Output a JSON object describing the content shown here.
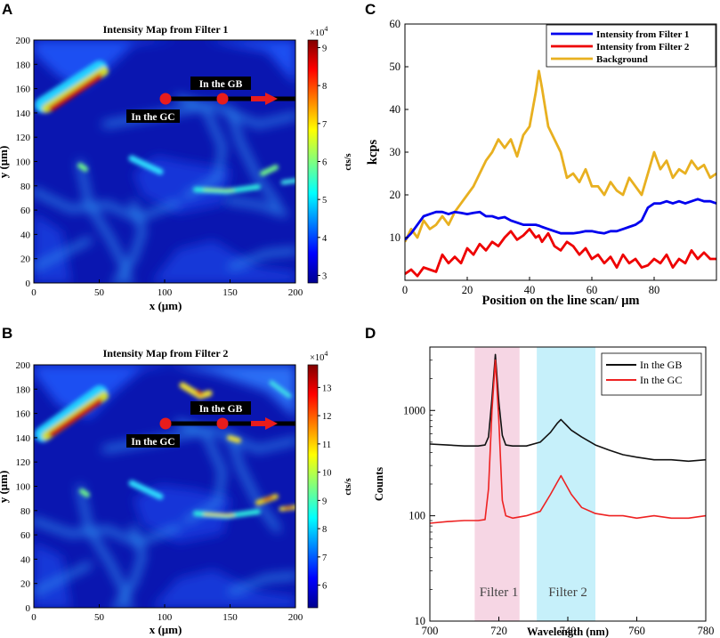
{
  "panels": {
    "A": {
      "letter": "A",
      "title": "Intensity Map from Filter 1",
      "xlabel": "x (μm)",
      "ylabel": "y (μm)",
      "xticks": [
        "0",
        "50",
        "100",
        "150",
        "200"
      ],
      "yticks": [
        "0",
        "20",
        "40",
        "60",
        "80",
        "100",
        "120",
        "140",
        "160",
        "180",
        "200"
      ],
      "xlim": [
        0,
        200
      ],
      "ylim": [
        0,
        200
      ],
      "colorbar": {
        "unit": "cts/s",
        "multiplier": "×10",
        "exponent": "4",
        "ticks": [
          "3",
          "4",
          "5",
          "6",
          "7",
          "8",
          "9"
        ],
        "range": [
          2.8,
          9.2
        ]
      },
      "annotations": {
        "gb": "In the GB",
        "gc": "In the GC",
        "line_scan": {
          "x": [
            100,
            200
          ],
          "y": 150,
          "gc_point_x": 101,
          "gb_point_x": 144
        }
      }
    },
    "B": {
      "letter": "B",
      "title": "Intensity Map from Filter 2",
      "xlabel": "x (μm)",
      "ylabel": "y (μm)",
      "xticks": [
        "0",
        "50",
        "100",
        "150",
        "200"
      ],
      "yticks": [
        "0",
        "20",
        "40",
        "60",
        "80",
        "100",
        "120",
        "140",
        "160",
        "180",
        "200"
      ],
      "xlim": [
        0,
        200
      ],
      "ylim": [
        0,
        200
      ],
      "colorbar": {
        "unit": "cts/s",
        "multiplier": "×10",
        "exponent": "4",
        "ticks": [
          "6",
          "7",
          "8",
          "9",
          "10",
          "11",
          "12",
          "13"
        ],
        "range": [
          5.2,
          13.8
        ]
      },
      "annotations": {
        "gb": "In the GB",
        "gc": "In the GC",
        "line_scan": {
          "x": [
            100,
            200
          ],
          "y": 150,
          "gc_point_x": 101,
          "gb_point_x": 144
        }
      }
    },
    "C": {
      "letter": "C"
    },
    "D": {
      "letter": "D"
    }
  },
  "chart_data": [
    {
      "panel": "C",
      "type": "line",
      "title": "",
      "xlabel": "Position on the line scan/ μm",
      "ylabel": "kcps",
      "xlim": [
        0,
        100
      ],
      "ylim": [
        0,
        60
      ],
      "xticks": [
        "0",
        "20",
        "40",
        "60",
        "80"
      ],
      "yticks": [
        "10",
        "20",
        "30",
        "40",
        "50",
        "60"
      ],
      "legend_position": "top-right",
      "x": [
        0,
        2,
        4,
        6,
        8,
        10,
        12,
        14,
        16,
        18,
        20,
        22,
        24,
        26,
        28,
        30,
        32,
        34,
        36,
        38,
        40,
        42,
        43,
        44,
        46,
        48,
        50,
        52,
        54,
        56,
        58,
        60,
        62,
        64,
        66,
        68,
        70,
        72,
        74,
        76,
        78,
        80,
        82,
        84,
        86,
        88,
        90,
        92,
        94,
        96,
        98,
        100
      ],
      "series": [
        {
          "name": "Intensity from Filter 1",
          "color": "#0000ee",
          "values": [
            9.5,
            11,
            13,
            15,
            15.5,
            16,
            16,
            15.5,
            16,
            15.8,
            15.5,
            15.8,
            16,
            15,
            15,
            14.5,
            14.8,
            14,
            13.5,
            13,
            13,
            13,
            12.8,
            12.5,
            12,
            11.5,
            11,
            11,
            11,
            11.2,
            11.5,
            11.5,
            11.2,
            11,
            11.5,
            11.5,
            12,
            12.5,
            13,
            14,
            17,
            18,
            18,
            18.5,
            18,
            18.5,
            18,
            18.5,
            19,
            18.5,
            18.5,
            18
          ]
        },
        {
          "name": "Intensity from Filter 2",
          "color": "#ee0000",
          "values": [
            1.5,
            2.5,
            1,
            3,
            2.5,
            2,
            6,
            4,
            5.5,
            4,
            7.5,
            6,
            8.5,
            7,
            9,
            8,
            10,
            11.5,
            9.5,
            10.5,
            12,
            10,
            10.5,
            9,
            11,
            8,
            7,
            9,
            8,
            6,
            7.5,
            5,
            6,
            4,
            5.5,
            3,
            6,
            4,
            5,
            3,
            3.5,
            5,
            4,
            6,
            3,
            5,
            4,
            7,
            5,
            6.5,
            5,
            5
          ]
        },
        {
          "name": "Background",
          "color": "#e8b020",
          "values": [
            9,
            12,
            10,
            14,
            12,
            13,
            15,
            13,
            16,
            18,
            20,
            22,
            25,
            28,
            30,
            33,
            31,
            33,
            29,
            34,
            36,
            44,
            49,
            45,
            36,
            33,
            30,
            24,
            25,
            23,
            26,
            22,
            22,
            20,
            23,
            21,
            20,
            24,
            22,
            20,
            25,
            30,
            26,
            28,
            24,
            26,
            25,
            28,
            26,
            27,
            24,
            25
          ]
        }
      ]
    },
    {
      "panel": "D",
      "type": "line",
      "title": "",
      "xlabel": "Wavelength (nm)",
      "ylabel": "Counts",
      "yscale": "log",
      "xlim": [
        700,
        780
      ],
      "ylim": [
        10,
        4000
      ],
      "xticks": [
        "700",
        "720",
        "740",
        "760",
        "780"
      ],
      "yticks": [
        "10",
        "100",
        "1000"
      ],
      "legend_position": "top-right",
      "bands": [
        {
          "label": "Filter 1",
          "range": [
            713,
            726
          ],
          "color": "#f6d6e4"
        },
        {
          "label": "Filter 2",
          "range": [
            731,
            748
          ],
          "color": "#c6f0fa"
        }
      ],
      "x": [
        700,
        705,
        710,
        714,
        716,
        717,
        718,
        719,
        720,
        721,
        722,
        724,
        728,
        732,
        735,
        737,
        738,
        739,
        741,
        744,
        748,
        752,
        756,
        760,
        765,
        770,
        775,
        780
      ],
      "series": [
        {
          "name": "In the GB",
          "color": "#111111",
          "values": [
            480,
            470,
            460,
            460,
            470,
            560,
            1300,
            3400,
            1200,
            580,
            470,
            460,
            460,
            500,
            620,
            760,
            820,
            760,
            650,
            560,
            470,
            420,
            380,
            360,
            340,
            340,
            330,
            340
          ]
        },
        {
          "name": "In the GC",
          "color": "#ee2222",
          "values": [
            85,
            88,
            90,
            90,
            92,
            180,
            1000,
            3000,
            800,
            140,
            100,
            95,
            100,
            110,
            160,
            210,
            240,
            210,
            160,
            120,
            105,
            100,
            100,
            95,
            100,
            95,
            95,
            100
          ]
        }
      ]
    }
  ]
}
